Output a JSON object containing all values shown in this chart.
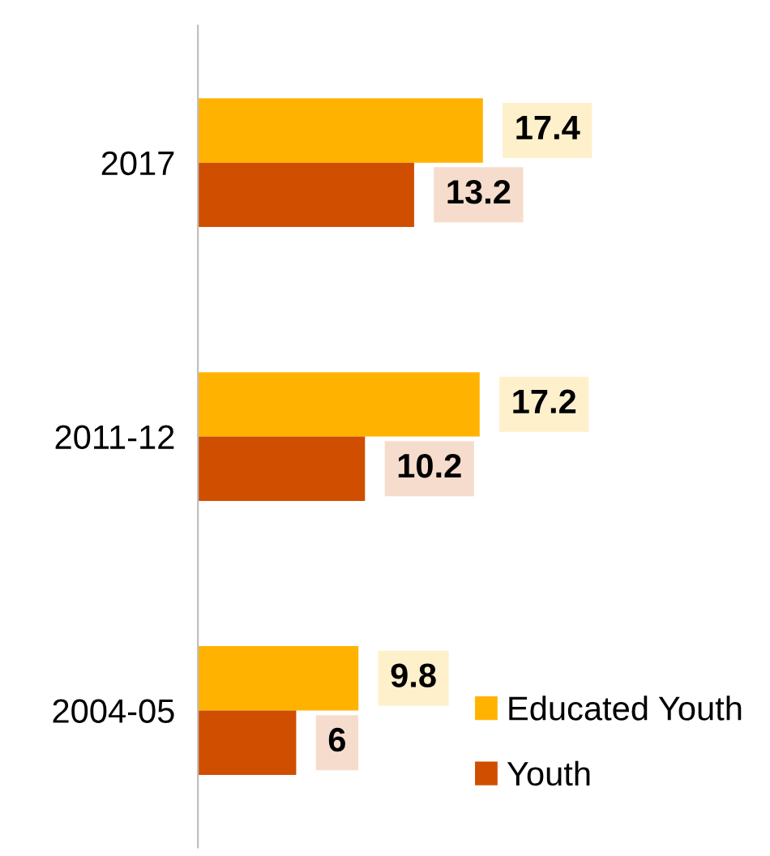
{
  "chart_data": {
    "type": "bar",
    "orientation": "horizontal",
    "categories": [
      "2017",
      "2011-12",
      "2004-05"
    ],
    "series": [
      {
        "name": "Educated Youth",
        "color": "#ffb300",
        "values": [
          17.4,
          17.2,
          9.8
        ]
      },
      {
        "name": "Youth",
        "color": "#d04e00",
        "values": [
          13.2,
          10.2,
          6
        ]
      }
    ],
    "data_labels": true,
    "legend": "bottom right",
    "tick_labels": "y",
    "grid": false
  }
}
